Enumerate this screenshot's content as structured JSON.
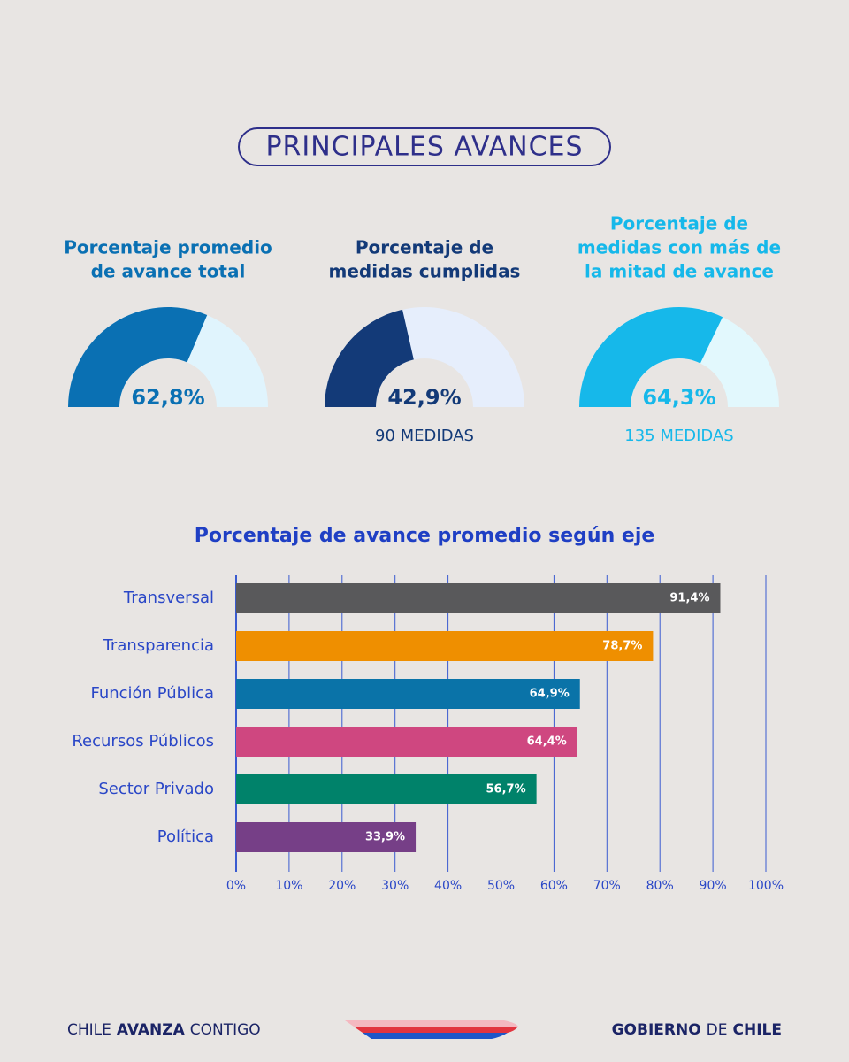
{
  "header": {
    "title": "PRINCIPALES AVANCES"
  },
  "chart_data": [
    {
      "type": "gauge",
      "title": [
        "Porcentaje promedio",
        "de avance total"
      ],
      "values": [
        62.8
      ],
      "value_labels": [
        "62,8%"
      ],
      "color": "#0a70b3",
      "track_color": "#e0f4fd",
      "ylim": [
        0,
        100
      ]
    },
    {
      "type": "gauge",
      "title": [
        "Porcentaje de",
        "medidas cumplidas"
      ],
      "values": [
        42.9
      ],
      "value_labels": [
        "42,9%"
      ],
      "subtitle": "90 MEDIDAS",
      "color": "#133a78",
      "track_color": "#e6eefc",
      "ylim": [
        0,
        100
      ]
    },
    {
      "type": "gauge",
      "title": [
        "Porcentaje de",
        "medidas con más de",
        "la mitad de avance"
      ],
      "values": [
        64.3
      ],
      "value_labels": [
        "64,3%"
      ],
      "subtitle": "135 MEDIDAS",
      "color": "#16b8ea",
      "track_color": "#e2f8fd",
      "ylim": [
        0,
        100
      ]
    },
    {
      "type": "bar",
      "orientation": "horizontal",
      "title": "Porcentaje de avance promedio según eje",
      "categories": [
        "Transversal",
        "Transparencia",
        "Función Pública",
        "Recursos Públicos",
        "Sector Privado",
        "Política"
      ],
      "values": [
        91.4,
        78.7,
        64.9,
        64.4,
        56.7,
        33.9
      ],
      "value_labels": [
        "91,4%",
        "78,7%",
        "64,9%",
        "64,4%",
        "56,7%",
        "33,9%"
      ],
      "colors": [
        "#59595b",
        "#ef8f00",
        "#0a73a8",
        "#cf4780",
        "#00826a",
        "#763f87"
      ],
      "xlim": [
        0,
        100
      ],
      "xticks": [
        {
          "value": 0,
          "label": "0%"
        },
        {
          "value": 10,
          "label": "10%"
        },
        {
          "value": 20,
          "label": "20%"
        },
        {
          "value": 30,
          "label": "30%"
        },
        {
          "value": 40,
          "label": "40%"
        },
        {
          "value": 50,
          "label": "50%"
        },
        {
          "value": 60,
          "label": "60%"
        },
        {
          "value": 70,
          "label": "70%"
        },
        {
          "value": 80,
          "label": "80%"
        },
        {
          "value": 90,
          "label": "90%"
        },
        {
          "value": 100,
          "label": "100%"
        }
      ],
      "grid": true
    }
  ],
  "footer": {
    "left": [
      "CHILE",
      "AVANZA",
      "CONTIGO"
    ],
    "right": [
      "GOBIERNO",
      "DE",
      "CHILE"
    ]
  }
}
